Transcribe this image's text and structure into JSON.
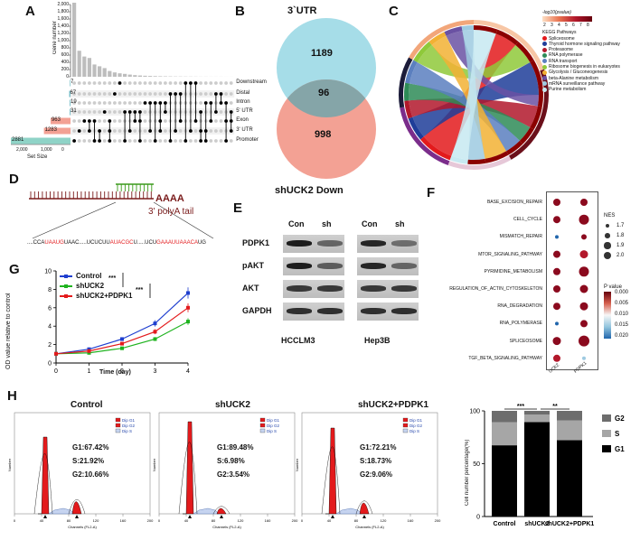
{
  "panels": {
    "A": "A",
    "B": "B",
    "C": "C",
    "D": "D",
    "E": "E",
    "F": "F",
    "G": "G",
    "H": "H"
  },
  "panel_a": {
    "ylabel": "Gene number",
    "yticks": [
      "2,000",
      "1,800",
      "1,600",
      "1,400",
      "1,200",
      "1,000",
      "800",
      "600",
      "400",
      "200",
      "0"
    ],
    "sets": [
      "Downstream",
      "Distal",
      "Intron",
      "5' UTR",
      "Exon",
      "3' UTR",
      "Promoter"
    ],
    "set_sizes": [
      7,
      67,
      19,
      31,
      963,
      1283,
      2881
    ],
    "set_size_label": "Set Size",
    "xticks": [
      "2,000",
      "1,000",
      "0"
    ],
    "intersections": [
      2050,
      720,
      560,
      520,
      340,
      290,
      240,
      160,
      120,
      95,
      80,
      60,
      45,
      35,
      28,
      22,
      18,
      15,
      12,
      10,
      8,
      7,
      6,
      5,
      4,
      3,
      3,
      2,
      2,
      2,
      1,
      1
    ]
  },
  "panel_b": {
    "top_label": "3`UTR",
    "bottom_label": "shUCK2  Down",
    "only_top": "1189",
    "overlap": "96",
    "only_bottom": "998"
  },
  "panel_c": {
    "scale_title": "-log10(pvalue)",
    "scale_ticks": [
      "2",
      "3",
      "4",
      "5",
      "6",
      "7",
      "8"
    ],
    "legend_title": "KEGG Pathways",
    "pathways": [
      {
        "name": "Spliceosome",
        "color": "#e31a1c"
      },
      {
        "name": "Thyroid hormone signaling pathway",
        "color": "#1f3d99"
      },
      {
        "name": "Proteasome",
        "color": "#b2182b"
      },
      {
        "name": "RNA polymerase",
        "color": "#2e8b57"
      },
      {
        "name": "RNA transport",
        "color": "#5b7fbf"
      },
      {
        "name": "Ribosome biogenesis in eukaryotes",
        "color": "#8fc93a"
      },
      {
        "name": "Glycolysis / Gluconeogenesis",
        "color": "#f2b134"
      },
      {
        "name": "beta-Alanine metabolism",
        "color": "#6a51a3"
      },
      {
        "name": "mRNA surveillance pathway",
        "color": "#9ecae1"
      },
      {
        "name": "Purine metabolism",
        "color": "#c7e9f1"
      }
    ]
  },
  "panel_d": {
    "tail": "AAAA",
    "tail_label": "3' polyA tail",
    "sequence": "....CCAUAAUGUAAC.....UCUCUUAUACGCU.....UCUGAAAUUAAACAUG"
  },
  "panel_e": {
    "col_labels": [
      "Con",
      "sh",
      "Con",
      "sh"
    ],
    "rows": [
      "PDPK1",
      "pAKT",
      "AKT",
      "GAPDH"
    ],
    "cell_lines": [
      "HCCLM3",
      "Hep3B"
    ]
  },
  "panel_f": {
    "pathways": [
      "BASE_EXCISION_REPAIR",
      "CELL_CYCLE",
      "MISMATCH_REPAIR",
      "MTOR_SIGNALING_PATHWAY",
      "PYRIMIDINE_METABOLISM",
      "REGULATION_OF_ACTIN_CYTOSKELETON",
      "RNA_DEGRADATION",
      "RNA_POLYMERASE",
      "SPLICEOSOME",
      "TGF_BETA_SIGNALING_PATHWAY"
    ],
    "columns": [
      "UCK2",
      "PDPK1"
    ],
    "nes_title": "NES",
    "nes_ticks": [
      "1.7",
      "1.8",
      "1.9",
      "2.0"
    ],
    "p_title": "P value",
    "p_ticks": [
      "0.000",
      "0.005",
      "0.010",
      "0.015",
      "0.020"
    ]
  },
  "panel_g": {
    "ylabel": "OD value relative to control",
    "xlabel": "Time (day)",
    "legend": [
      "Control",
      "shUCK2",
      "shUCK2+PDPK1"
    ],
    "sig": [
      "***",
      "***"
    ],
    "xticks": [
      "0",
      "1",
      "2",
      "3",
      "4"
    ],
    "yticks": [
      "0",
      "2",
      "4",
      "6",
      "8",
      "10"
    ]
  },
  "panel_h": {
    "conditions": [
      {
        "title": "Control",
        "g1": "G1:67.42%",
        "s": "S:21.92%",
        "g2": "G2:10.66%"
      },
      {
        "title": "shUCK2",
        "g1": "G1:89.48%",
        "s": "S:6.98%",
        "g2": "G2:3.54%"
      },
      {
        "title": "shUCK2+PDPK1",
        "g1": "G1:72.21%",
        "s": "S:18.73%",
        "g2": "G2:9.06%"
      }
    ],
    "hist_legend": [
      "Dip G1",
      "Dip G2",
      "Dip S"
    ],
    "hist_xlabel": "Channels (FL2-A)",
    "hist_ylabel": "Number",
    "bar_ylabel": "Cell number percentage(%)",
    "bar_legend": [
      "G2",
      "S",
      "G1"
    ],
    "sig": [
      "***",
      "**"
    ],
    "yticks": [
      "0",
      "50",
      "100"
    ]
  },
  "chart_data": [
    {
      "type": "line",
      "title": "",
      "xlabel": "Time (day)",
      "ylabel": "OD value relative to control",
      "x": [
        0,
        1,
        2,
        3,
        4
      ],
      "xlim": [
        0,
        4
      ],
      "ylim": [
        0,
        10
      ],
      "series": [
        {
          "name": "Control",
          "color": "#1f3fcf",
          "values": [
            1.0,
            1.5,
            2.6,
            4.3,
            7.6
          ]
        },
        {
          "name": "shUCK2",
          "color": "#1fb31f",
          "values": [
            1.0,
            1.1,
            1.6,
            2.6,
            4.5
          ]
        },
        {
          "name": "shUCK2+PDPK1",
          "color": "#e31a1c",
          "values": [
            1.0,
            1.3,
            2.1,
            3.4,
            6.0
          ]
        }
      ]
    },
    {
      "type": "bar",
      "title": "",
      "xlabel": "",
      "ylabel": "Cell number percentage(%)",
      "categories": [
        "Control",
        "shUCK2",
        "shUCK2+PDPK1"
      ],
      "ylim": [
        0,
        100
      ],
      "series": [
        {
          "name": "G1",
          "color": "#000000",
          "values": [
            67.42,
            89.48,
            72.21
          ]
        },
        {
          "name": "S",
          "color": "#a6a6a6",
          "values": [
            21.92,
            6.98,
            18.73
          ]
        },
        {
          "name": "G2",
          "color": "#6d6d6d",
          "values": [
            10.66,
            3.54,
            9.06
          ]
        }
      ]
    }
  ]
}
